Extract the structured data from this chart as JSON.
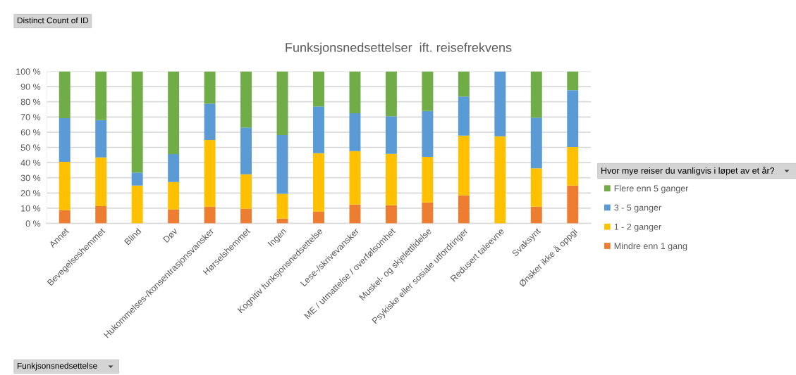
{
  "chart_data": {
    "type": "bar",
    "stacked": true,
    "title": "Funksjonsnedsettelser  ift. reisefrekvens",
    "xlabel": "Funkjsonsnedsettelse",
    "annotations": [
      "Distinct Count of ID"
    ],
    "legend_title": "Hvor mye reiser du vanligvis i løpet av et år?",
    "categories": [
      "Annet",
      "Bevegelseshemmet",
      "Blind",
      "Døv",
      "Hukommelses-/konsentrasjonsvansker",
      "Hørselshemmet",
      "Ingen",
      "Kognitiv funksjonsnedsettelse",
      "Lese-/skrivevansker",
      "ME / utmattelse / overfølsomhet",
      "Muskel- og skjelettlidelse",
      "Psykiske eller sosiale utfordringer",
      "Redusert taleevne",
      "Svaksynt",
      "Ønsker ikke å oppgi"
    ],
    "series": [
      {
        "name": "Mindre enn 1 gang",
        "color": "#ed7d31",
        "values": [
          8.7,
          11.3,
          0,
          9.1,
          11.0,
          9.6,
          3.1,
          7.7,
          12.4,
          11.9,
          13.8,
          18.4,
          0,
          11.0,
          24.9
        ]
      },
      {
        "name": "1 - 2 ganger",
        "color": "#ffc000",
        "values": [
          31.8,
          32.1,
          24.9,
          18.1,
          43.9,
          22.7,
          16.4,
          38.5,
          35.2,
          33.8,
          29.9,
          39.3,
          57.3,
          25.2,
          25.3
        ]
      },
      {
        "name": "3 - 5 ganger",
        "color": "#5b9bd5",
        "values": [
          28.7,
          24.5,
          8.5,
          18.4,
          23.9,
          30.8,
          38.6,
          30.8,
          24.9,
          24.8,
          30.3,
          25.8,
          42.7,
          33.4,
          37.4
        ]
      },
      {
        "name": "Flere enn 5 ganger",
        "color": "#70ad47",
        "values": [
          30.8,
          32.1,
          66.6,
          54.4,
          21.2,
          36.9,
          41.9,
          23.0,
          27.5,
          29.5,
          26.0,
          16.5,
          0,
          30.4,
          12.4
        ]
      }
    ],
    "ylim": [
      0,
      100
    ],
    "yticks": [
      {
        "value": 0,
        "label": "0 %"
      },
      {
        "value": 10,
        "label": "10 %"
      },
      {
        "value": 20,
        "label": "20 %"
      },
      {
        "value": 30,
        "label": "30 %"
      },
      {
        "value": 40,
        "label": "40 %"
      },
      {
        "value": 50,
        "label": "50 %"
      },
      {
        "value": 60,
        "label": "60 %"
      },
      {
        "value": 70,
        "label": "70 %"
      },
      {
        "value": 80,
        "label": "80 %"
      },
      {
        "value": 90,
        "label": "90 %"
      },
      {
        "value": 100,
        "label": "100 %"
      }
    ],
    "grid": "y",
    "legend": "right"
  }
}
